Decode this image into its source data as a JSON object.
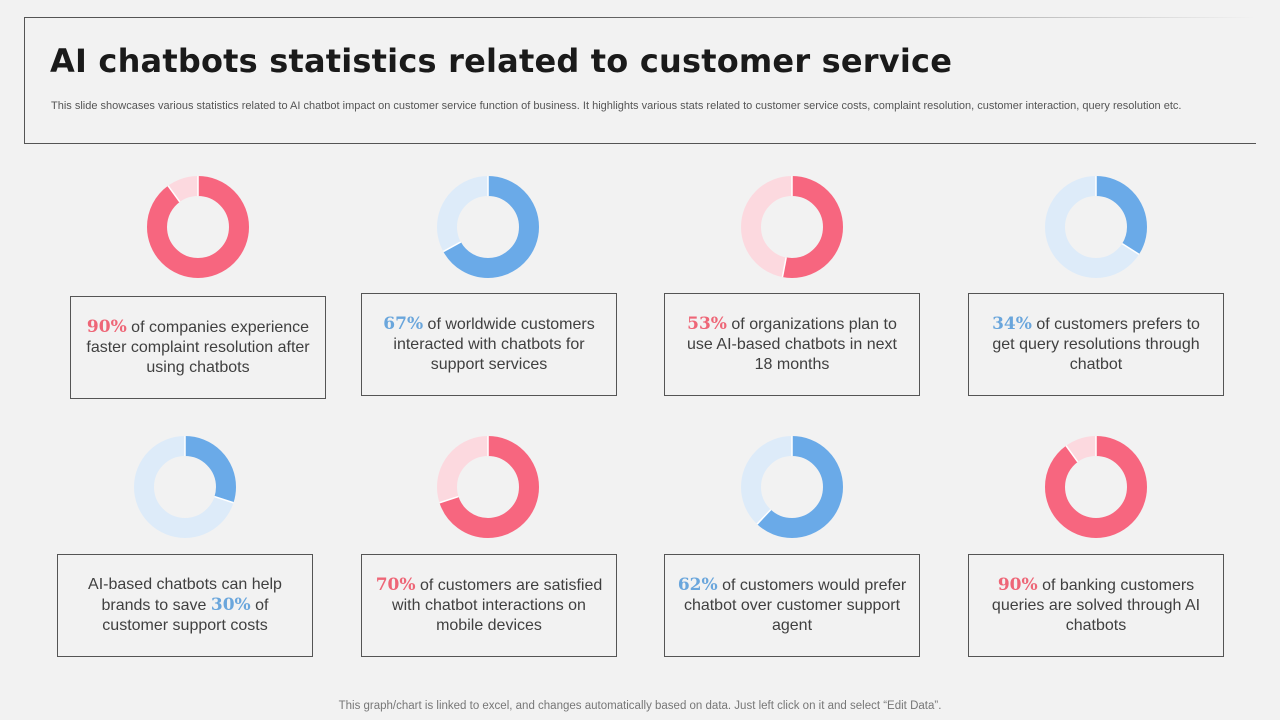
{
  "header": {
    "title": "AI chatbots statistics related to customer service",
    "subtitle": "This slide showcases various statistics related to AI chatbot impact on customer service function of business. It highlights various stats related to customer service costs, complaint resolution, customer interaction, query resolution etc."
  },
  "colors": {
    "red": "#f7667f",
    "red_light": "#fcd9df",
    "blue": "#6aaae8",
    "blue_light": "#ddebf9"
  },
  "cards": [
    {
      "pct": "90%",
      "pre": "",
      "post": " of companies experience faster complaint resolution after using chatbots",
      "color": "red"
    },
    {
      "pct": "67%",
      "pre": "",
      "post": " of worldwide customers interacted with chatbots for support services",
      "color": "blue"
    },
    {
      "pct": "53%",
      "pre": "",
      "post": " of organizations plan to use AI-based chatbots in next 18 months",
      "color": "red"
    },
    {
      "pct": "34%",
      "pre": "",
      "post": " of customers prefers to get query resolutions through chatbot",
      "color": "blue"
    },
    {
      "pct": "30%",
      "pre": "AI-based chatbots can help brands to save ",
      "post": " of customer support costs",
      "color": "blue"
    },
    {
      "pct": "70%",
      "pre": "",
      "post": " of customers are satisfied with chatbot interactions on mobile devices",
      "color": "red"
    },
    {
      "pct": "62%",
      "pre": "",
      "post": " of customers would prefer chatbot over customer support agent",
      "color": "blue"
    },
    {
      "pct": "90%",
      "pre": "",
      "post": " of banking customers queries are solved through AI chatbots",
      "color": "red"
    }
  ],
  "chart_data": [
    {
      "type": "pie",
      "values": [
        90,
        10
      ],
      "color": "red"
    },
    {
      "type": "pie",
      "values": [
        67,
        33
      ],
      "color": "blue"
    },
    {
      "type": "pie",
      "values": [
        53,
        47
      ],
      "color": "red"
    },
    {
      "type": "pie",
      "values": [
        34,
        66
      ],
      "color": "blue"
    },
    {
      "type": "pie",
      "values": [
        30,
        70
      ],
      "color": "blue"
    },
    {
      "type": "pie",
      "values": [
        70,
        30
      ],
      "color": "red"
    },
    {
      "type": "pie",
      "values": [
        62,
        38
      ],
      "color": "blue"
    },
    {
      "type": "pie",
      "values": [
        90,
        10
      ],
      "color": "red"
    }
  ],
  "footer": "This graph/chart is linked to excel, and changes automatically based on data. Just left click on it and select “Edit Data”."
}
